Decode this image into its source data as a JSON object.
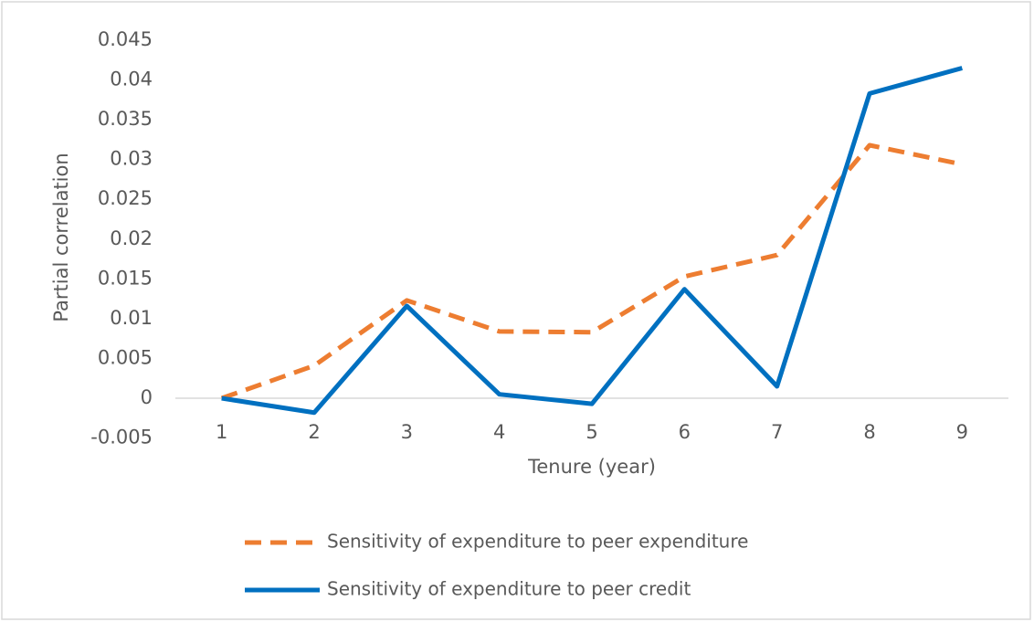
{
  "chart_data": {
    "type": "line",
    "y_label": "Partial correlation",
    "x_label": "Tenure (year)",
    "categories": [
      "1",
      "2",
      "3",
      "4",
      "5",
      "6",
      "7",
      "8",
      "9"
    ],
    "series": [
      {
        "name": "Sensitivity of expenditure to peer expenditure",
        "color": "#ed7d31",
        "dash": "dashed",
        "values": [
          0,
          0.0041,
          0.0123,
          0.0084,
          0.0083,
          0.0153,
          0.018,
          0.0318,
          0.0294
        ]
      },
      {
        "name": "Sensitivity of expenditure to peer credit",
        "color": "#0070c0",
        "dash": "solid",
        "values": [
          0,
          -0.0018,
          0.0116,
          0.0005,
          -0.0007,
          0.0137,
          0.0015,
          0.0383,
          0.0415
        ]
      }
    ],
    "ylim": [
      -0.005,
      0.045
    ],
    "yticks": [
      -0.005,
      0,
      0.005,
      0.01,
      0.015,
      0.02,
      0.025,
      0.03,
      0.035,
      0.04,
      0.045
    ],
    "grid": false,
    "legend": "bottom"
  }
}
